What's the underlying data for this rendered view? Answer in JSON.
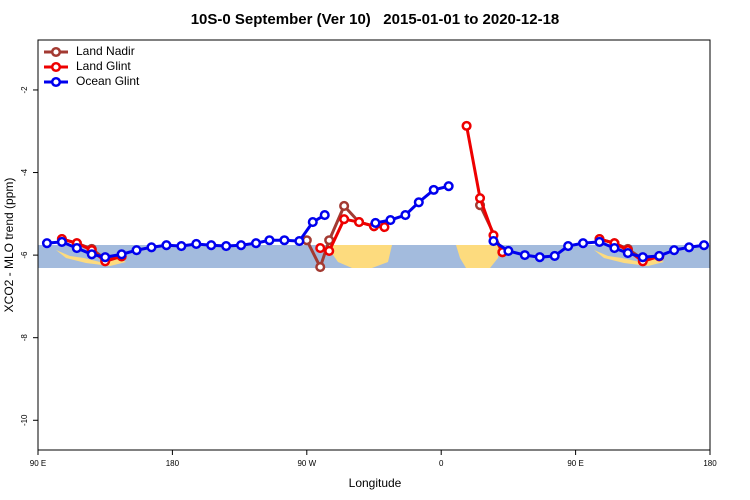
{
  "chart_data": {
    "type": "line",
    "title": "10S-0 September (Ver 10)   2015-01-01 to 2020-12-18",
    "x_label": "Longitude",
    "y_label": "XCO2 - MLO trend (ppm)",
    "xlim": [
      90,
      540
    ],
    "ylim": [
      -10.72,
      -0.79
    ],
    "xticks": [
      {
        "value": 90,
        "label": "90 E"
      },
      180,
      {
        "value": 270,
        "label": "90 W"
      },
      {
        "value": 360,
        "label": "0"
      },
      {
        "value": 450,
        "label": "90 E"
      },
      180
    ],
    "yticks": [
      -2,
      -4,
      -6,
      -8,
      -10
    ],
    "legend": "topleft",
    "series": [
      {
        "name": "Land Nadir",
        "color": "#a33a32",
        "x": [
          106,
          116,
          126,
          135,
          146,
          null,
          270,
          279,
          285,
          295,
          305,
          315,
          null,
          386,
          401,
          null,
          466,
          476,
          485,
          495,
          506
        ],
        "values": [
          -5.61,
          -5.71,
          -5.85,
          -6.1,
          -6.03,
          null,
          -5.64,
          -6.29,
          -5.64,
          -4.81,
          -5.2,
          -5.3,
          null,
          -4.79,
          -5.93,
          null,
          -5.61,
          -5.71,
          -5.85,
          -6.1,
          -6.03
        ]
      },
      {
        "name": "Land Glint",
        "color": "#ee0000",
        "x": [
          106,
          116,
          126,
          135,
          146,
          null,
          279,
          285,
          295,
          305,
          315,
          322,
          null,
          377,
          386,
          395,
          401,
          null,
          466,
          476,
          485,
          495,
          506
        ],
        "values": [
          -5.61,
          -5.71,
          -5.88,
          -6.15,
          -6.03,
          null,
          -5.83,
          -5.9,
          -5.13,
          -5.2,
          -5.3,
          -5.32,
          null,
          -2.87,
          -4.62,
          -5.52,
          -5.93,
          null,
          -5.61,
          -5.71,
          -5.88,
          -6.15,
          -6.03
        ]
      },
      {
        "name": "Ocean Glint",
        "color": "#0000ee",
        "x": [
          96,
          106,
          116,
          126,
          135,
          146,
          156,
          166,
          176,
          186,
          196,
          206,
          216,
          226,
          236,
          245,
          255,
          265,
          274,
          282,
          null,
          316,
          326,
          336,
          345,
          355,
          365,
          null,
          395,
          405,
          416,
          426,
          436,
          445,
          455,
          466,
          476,
          485,
          495,
          506,
          516,
          526,
          536
        ],
        "values": [
          -5.71,
          -5.68,
          -5.83,
          -5.98,
          -6.05,
          -5.98,
          -5.88,
          -5.81,
          -5.76,
          -5.78,
          -5.73,
          -5.76,
          -5.78,
          -5.76,
          -5.71,
          -5.64,
          -5.64,
          -5.66,
          -5.2,
          -5.03,
          null,
          -5.22,
          -5.15,
          -5.03,
          -4.72,
          -4.42,
          -4.33,
          null,
          -5.66,
          -5.9,
          -6.0,
          -6.05,
          -6.02,
          -5.78,
          -5.71,
          -5.68,
          -5.83,
          -5.95,
          -6.05,
          -6.02,
          -5.88,
          -5.81,
          -5.76
        ]
      }
    ]
  }
}
